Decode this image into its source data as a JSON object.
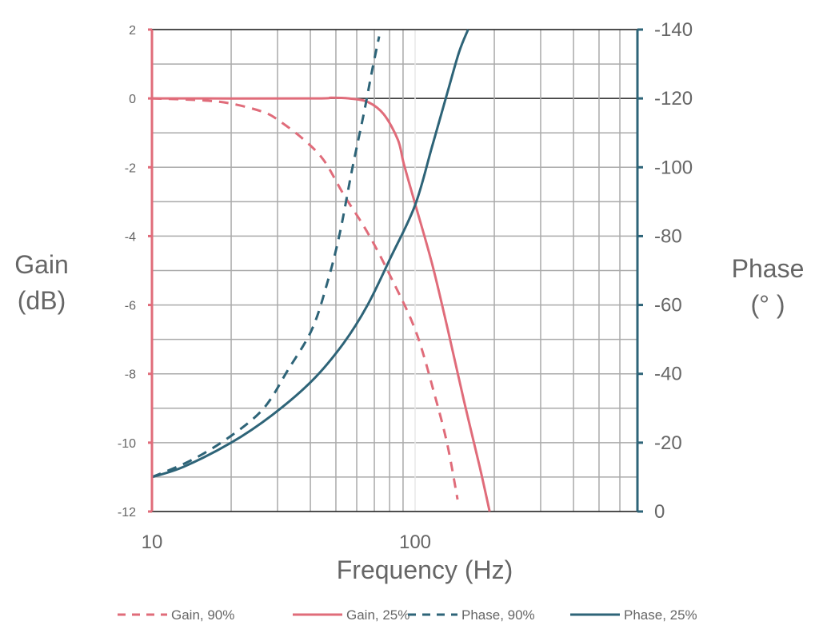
{
  "chart_data": {
    "type": "line",
    "title": "",
    "xlabel": "Frequency (Hz)",
    "ylabel": "Gain (dB)",
    "ylabel_right_line1": "Phase",
    "ylabel_right_line2": "(° )",
    "xlabel_ticks": [
      "10",
      "100"
    ],
    "xscale": "log",
    "xlim": [
      10,
      700
    ],
    "ylim": [
      -12,
      2
    ],
    "ylim_right": [
      0,
      -140
    ],
    "yticks": [
      "2",
      "0",
      "-2",
      "-4",
      "-6",
      "-8",
      "-10",
      "-12"
    ],
    "yticks_right": [
      "-140",
      "-120",
      "-100",
      "-80",
      "-60",
      "-40",
      "-20",
      "0"
    ],
    "grid": true,
    "legend_placement": "bottom",
    "colors": {
      "gain": "#e06c7a",
      "phase": "#2e6478"
    },
    "series": [
      {
        "name": "Gain, 90%",
        "axis": "left",
        "style": "dashed",
        "color": "#e06c7a",
        "x": [
          10,
          15.2,
          20,
          26.6,
          30.7,
          37.8,
          45,
          53.6,
          66,
          81,
          101,
          120,
          133,
          145
        ],
        "y": [
          0,
          -0.05,
          -0.15,
          -0.4,
          -0.67,
          -1.2,
          -1.8,
          -2.8,
          -3.9,
          -5.2,
          -6.8,
          -8.75,
          -10.1,
          -11.65
        ]
      },
      {
        "name": "Gain, 25%",
        "axis": "left",
        "style": "solid",
        "color": "#e06c7a",
        "x": [
          10,
          40,
          48,
          56,
          66,
          76,
          86,
          90.6,
          100,
          116,
          133,
          153,
          176,
          192
        ],
        "y": [
          0,
          0,
          0.02,
          0,
          -0.1,
          -0.46,
          -1.2,
          -1.9,
          -3.06,
          -4.8,
          -6.7,
          -8.75,
          -10.7,
          -12
        ]
      },
      {
        "name": "Phase, 90%",
        "axis": "right",
        "style": "dashed",
        "color": "#2e6478",
        "x": [
          10,
          14.2,
          20,
          26.6,
          32.8,
          40.6,
          46.6,
          51.8,
          57.5,
          64,
          68.6,
          73
        ],
        "y": [
          -10,
          -15,
          -22,
          -30,
          -41,
          -53,
          -67,
          -81,
          -99,
          -116,
          -128,
          -138
        ]
      },
      {
        "name": "Phase, 25%",
        "axis": "right",
        "style": "solid",
        "color": "#2e6478",
        "x": [
          10,
          13.2,
          20,
          28.6,
          40.6,
          53.6,
          66,
          81,
          100,
          116,
          133,
          147,
          159
        ],
        "y": [
          -10,
          -13,
          -20,
          -28,
          -38,
          -49,
          -60,
          -74,
          -89,
          -106,
          -122,
          -133.5,
          -140
        ]
      }
    ]
  }
}
